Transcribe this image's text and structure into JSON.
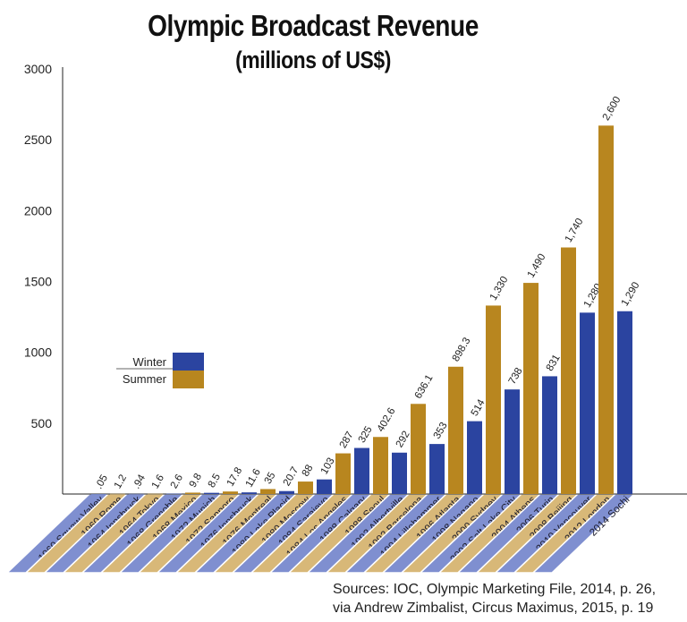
{
  "chart_data": {
    "type": "bar",
    "title": "Olympic Broadcast Revenue",
    "subtitle": "(millions of US$)",
    "categories": [
      "1960 Squaw Valley",
      "1960 Rome",
      "1964 Innsbruck",
      "1964 Tokyo",
      "1968 Grenoble",
      "1968 Mexico",
      "1972 Munich",
      "1972 Sapporo",
      "1976 Innsbruck",
      "1976 Montreal",
      "1980 Lake Placid",
      "1980 Moscow",
      "1984 Sarajevo",
      "1984 Los Angeles",
      "1988 Calgary",
      "1988 Seoul",
      "1992 Albertville",
      "1992 Barcelona",
      "1994 Lillehammer",
      "1996 Atlanta",
      "1998 Nagano",
      "2000 Sydney",
      "2002 Salt Lake City",
      "2004 Athens",
      "2006 Turin",
      "2008 Beijing",
      "2010 Vancouver",
      "2012 London",
      "2014 Sochi"
    ],
    "values": [
      0.05,
      1.2,
      0.94,
      1.6,
      2.6,
      9.8,
      8.5,
      17.8,
      11.6,
      35,
      20.7,
      88,
      103,
      287,
      325,
      402.6,
      292,
      636.1,
      353,
      898.3,
      514,
      1330,
      738,
      1490,
      831,
      1740,
      1280,
      2600,
      1290
    ],
    "data_labels": [
      ".05",
      "1.2",
      ".94",
      "1.6",
      "2.6",
      "9.8",
      "8.5",
      "17.8",
      "11.6",
      "35",
      "20.7",
      "88",
      "103",
      "287",
      "325",
      "402.6",
      "292",
      "636.1",
      "353",
      "898.3",
      "514",
      "1,330",
      "738",
      "1,490",
      "831",
      "1,740",
      "1,280",
      "2,600",
      "1,290"
    ],
    "series_by_bar": [
      "Winter",
      "Summer"
    ],
    "ylim": [
      0,
      3000
    ],
    "yticks": [
      500,
      1000,
      1500,
      2000,
      2500,
      3000
    ],
    "grid": false,
    "legend": {
      "placement": "left-middle",
      "entries": [
        {
          "name": "Winter",
          "color": "#2b44a0"
        },
        {
          "name": "Summer",
          "color": "#b8861f"
        }
      ]
    },
    "colors": {
      "winter": "#2b44a0",
      "summer": "#b8861f",
      "winter_label_band": "#7f8fd0",
      "summer_label_band": "#d8b878"
    }
  },
  "sources": {
    "line1": "Sources: IOC, Olympic Marketing File, 2014, p. 26,",
    "line2": "via Andrew Zimbalist, Circus Maximus, 2015, p. 19"
  }
}
